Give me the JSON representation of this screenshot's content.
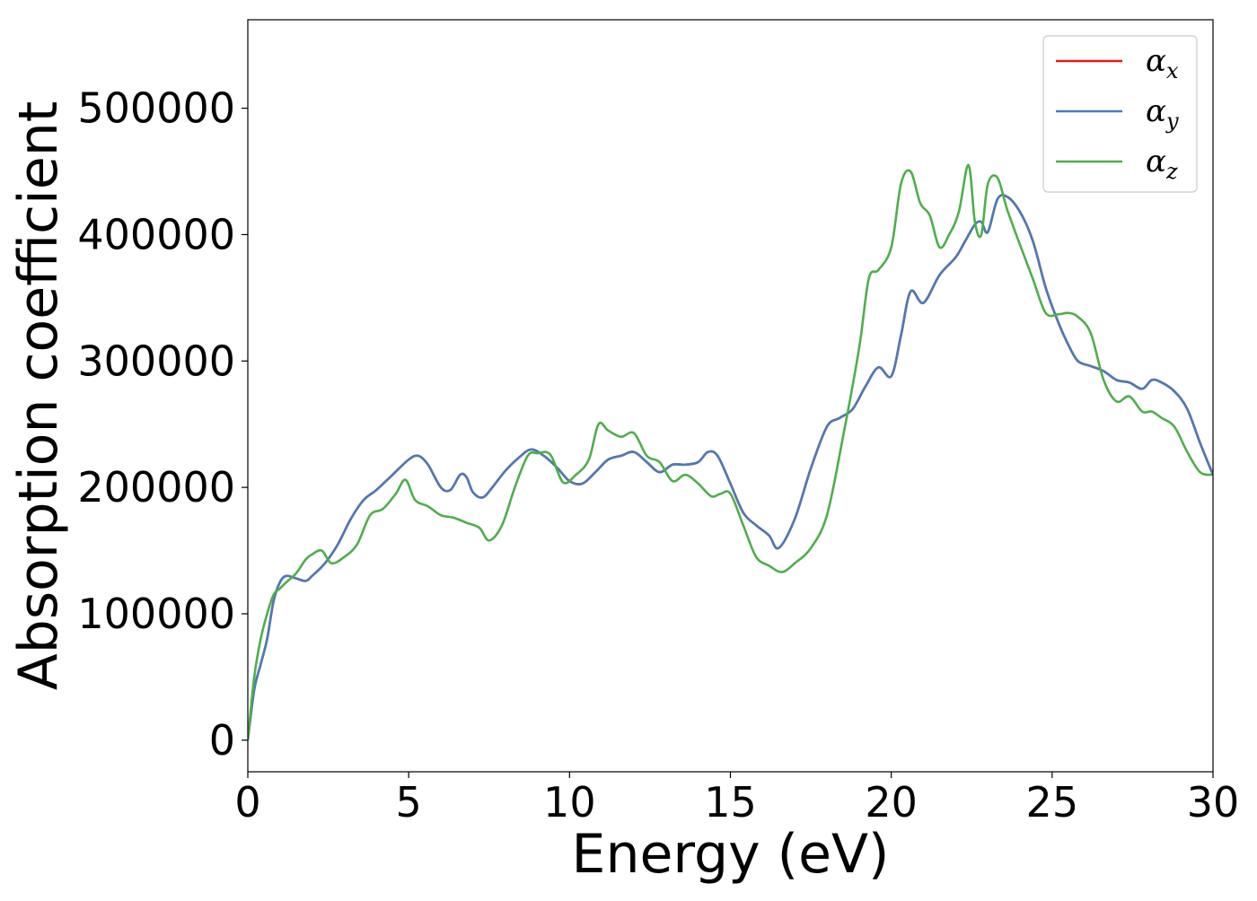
{
  "chart_data": {
    "type": "line",
    "title": "",
    "xlabel": "Energy (eV)",
    "ylabel": "Absorption coefficient",
    "xlim": [
      0,
      30
    ],
    "ylim": [
      -25000,
      570000
    ],
    "xticks": [
      0,
      5,
      10,
      15,
      20,
      25,
      30
    ],
    "xtick_labels": [
      "0",
      "5",
      "10",
      "15",
      "20",
      "25",
      "30"
    ],
    "yticks": [
      0,
      100000,
      200000,
      300000,
      400000,
      500000
    ],
    "ytick_labels": [
      "0",
      "100000",
      "200000",
      "300000",
      "400000",
      "500000"
    ],
    "grid": false,
    "legend_position": "top-right",
    "series": [
      {
        "name": "αx",
        "legend_symbol": "α",
        "legend_subscript": "x",
        "color": "#e41a1c",
        "x": [
          0,
          0.2,
          0.4,
          0.6,
          0.8,
          1.0,
          1.2,
          1.5,
          1.8,
          2.0,
          2.4,
          2.8,
          3.2,
          3.6,
          4.0,
          4.5,
          5.0,
          5.3,
          5.6,
          6.0,
          6.3,
          6.6,
          6.8,
          7.0,
          7.3,
          7.6,
          8.0,
          8.4,
          8.8,
          9.2,
          9.6,
          10.0,
          10.4,
          10.8,
          11.2,
          11.6,
          12.0,
          12.4,
          12.8,
          13.2,
          13.6,
          14.0,
          14.3,
          14.6,
          15.0,
          15.4,
          15.8,
          16.2,
          16.5,
          17.0,
          17.5,
          18.0,
          18.4,
          18.8,
          19.2,
          19.6,
          20.0,
          20.3,
          20.6,
          21.0,
          21.5,
          22.0,
          22.3,
          22.6,
          22.8,
          23.0,
          23.3,
          23.6,
          24.0,
          24.4,
          24.8,
          25.2,
          25.5,
          25.8,
          26.2,
          26.6,
          27.0,
          27.4,
          27.8,
          28.1,
          28.4,
          28.8,
          29.2,
          29.6,
          30.0
        ],
        "values": [
          0,
          40000,
          60000,
          80000,
          110000,
          125000,
          130000,
          128000,
          126000,
          130000,
          140000,
          155000,
          175000,
          190000,
          198000,
          210000,
          222000,
          225000,
          218000,
          200000,
          198000,
          210000,
          208000,
          196000,
          192000,
          200000,
          213000,
          223000,
          230000,
          225000,
          216000,
          205000,
          203000,
          212000,
          222000,
          225000,
          228000,
          220000,
          212000,
          218000,
          218000,
          220000,
          228000,
          225000,
          203000,
          180000,
          170000,
          162000,
          152000,
          175000,
          215000,
          248000,
          255000,
          262000,
          280000,
          295000,
          288000,
          320000,
          355000,
          346000,
          368000,
          382000,
          395000,
          408000,
          410000,
          402000,
          428000,
          430000,
          418000,
          395000,
          358000,
          330000,
          313000,
          300000,
          296000,
          292000,
          285000,
          283000,
          278000,
          285000,
          283000,
          276000,
          262000,
          235000,
          210000
        ]
      },
      {
        "name": "αy",
        "legend_symbol": "α",
        "legend_subscript": "y",
        "color": "#4a7bb7",
        "x": [
          0,
          0.2,
          0.4,
          0.6,
          0.8,
          1.0,
          1.2,
          1.5,
          1.8,
          2.0,
          2.4,
          2.8,
          3.2,
          3.6,
          4.0,
          4.5,
          5.0,
          5.3,
          5.6,
          6.0,
          6.3,
          6.6,
          6.8,
          7.0,
          7.3,
          7.6,
          8.0,
          8.4,
          8.8,
          9.2,
          9.6,
          10.0,
          10.4,
          10.8,
          11.2,
          11.6,
          12.0,
          12.4,
          12.8,
          13.2,
          13.6,
          14.0,
          14.3,
          14.6,
          15.0,
          15.4,
          15.8,
          16.2,
          16.5,
          17.0,
          17.5,
          18.0,
          18.4,
          18.8,
          19.2,
          19.6,
          20.0,
          20.3,
          20.6,
          21.0,
          21.5,
          22.0,
          22.3,
          22.6,
          22.8,
          23.0,
          23.3,
          23.6,
          24.0,
          24.4,
          24.8,
          25.2,
          25.5,
          25.8,
          26.2,
          26.6,
          27.0,
          27.4,
          27.8,
          28.1,
          28.4,
          28.8,
          29.2,
          29.6,
          30.0
        ],
        "values": [
          0,
          40000,
          60000,
          80000,
          110000,
          125000,
          130000,
          128000,
          126000,
          130000,
          140000,
          155000,
          175000,
          190000,
          198000,
          210000,
          222000,
          225000,
          218000,
          200000,
          198000,
          210000,
          208000,
          196000,
          192000,
          200000,
          213000,
          223000,
          230000,
          225000,
          216000,
          205000,
          203000,
          212000,
          222000,
          225000,
          228000,
          220000,
          212000,
          218000,
          218000,
          220000,
          228000,
          225000,
          203000,
          180000,
          170000,
          162000,
          152000,
          175000,
          215000,
          248000,
          255000,
          262000,
          280000,
          295000,
          288000,
          320000,
          355000,
          346000,
          368000,
          382000,
          395000,
          408000,
          410000,
          402000,
          428000,
          430000,
          418000,
          395000,
          358000,
          330000,
          313000,
          300000,
          296000,
          292000,
          285000,
          283000,
          278000,
          285000,
          283000,
          276000,
          262000,
          235000,
          210000
        ]
      },
      {
        "name": "αz",
        "legend_symbol": "α",
        "legend_subscript": "z",
        "color": "#4daf4a",
        "x": [
          0,
          0.2,
          0.4,
          0.6,
          0.8,
          1.0,
          1.2,
          1.5,
          1.8,
          2.0,
          2.3,
          2.6,
          3.0,
          3.4,
          3.8,
          4.2,
          4.6,
          4.9,
          5.2,
          5.6,
          6.0,
          6.4,
          6.8,
          7.2,
          7.5,
          7.9,
          8.3,
          8.7,
          9.0,
          9.4,
          9.8,
          10.2,
          10.6,
          10.9,
          11.2,
          11.6,
          12.0,
          12.4,
          12.8,
          13.2,
          13.6,
          14.0,
          14.4,
          14.7,
          15.0,
          15.4,
          15.8,
          16.2,
          16.6,
          17.0,
          17.5,
          18.0,
          18.5,
          19.0,
          19.3,
          19.6,
          20.0,
          20.3,
          20.6,
          20.9,
          21.2,
          21.5,
          21.8,
          22.1,
          22.4,
          22.6,
          22.8,
          23.0,
          23.3,
          23.6,
          24.0,
          24.4,
          24.8,
          25.2,
          25.5,
          25.8,
          26.2,
          26.6,
          27.0,
          27.4,
          27.8,
          28.1,
          28.4,
          28.8,
          29.2,
          29.6,
          30.0
        ],
        "values": [
          0,
          50000,
          80000,
          100000,
          115000,
          120000,
          125000,
          132000,
          143000,
          147000,
          150000,
          140000,
          145000,
          155000,
          178000,
          183000,
          195000,
          206000,
          190000,
          185000,
          178000,
          176000,
          172000,
          168000,
          158000,
          170000,
          200000,
          225000,
          227000,
          226000,
          204000,
          210000,
          222000,
          250000,
          245000,
          240000,
          243000,
          225000,
          220000,
          205000,
          210000,
          203000,
          193000,
          195000,
          195000,
          170000,
          145000,
          138000,
          133000,
          140000,
          152000,
          178000,
          240000,
          310000,
          365000,
          372000,
          390000,
          440000,
          450000,
          425000,
          415000,
          390000,
          400000,
          418000,
          455000,
          410000,
          400000,
          440000,
          445000,
          420000,
          392000,
          365000,
          338000,
          337000,
          338000,
          335000,
          322000,
          285000,
          268000,
          272000,
          260000,
          260000,
          255000,
          248000,
          228000,
          212000,
          210000
        ]
      }
    ]
  }
}
